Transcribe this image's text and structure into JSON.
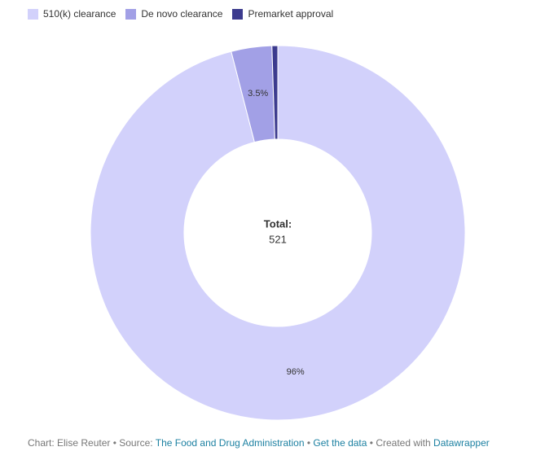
{
  "chart_data": {
    "type": "donut",
    "categories": [
      "510(k) clearance",
      "De novo clearance",
      "Premarket approval"
    ],
    "values": [
      96,
      3.5,
      0.5
    ],
    "value_labels": [
      "96%",
      "3.5%",
      null
    ],
    "colors": [
      "#d2d1fb",
      "#a2a0e6",
      "#3c3b8e"
    ],
    "total": {
      "label": "Total:",
      "value": 521
    },
    "legend": "top-left"
  },
  "footer": [
    {
      "text": "Chart: Elise Reuter • Source:",
      "link": false
    },
    {
      "text": "The Food and Drug Administration",
      "link": true
    },
    {
      "text": "•",
      "link": false
    },
    {
      "text": "Get the data",
      "link": true
    },
    {
      "text": "• Created with",
      "link": false
    },
    {
      "text": "Datawrapper",
      "link": true
    }
  ]
}
